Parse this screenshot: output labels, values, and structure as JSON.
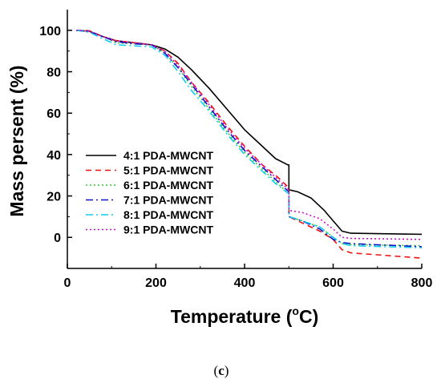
{
  "chart_data": {
    "type": "line",
    "xlabel_main": "Temperature (",
    "xlabel_sup": "o",
    "xlabel_end": "C)",
    "ylabel": "Mass persent (%)",
    "caption_open": "(",
    "caption_letter": "c",
    "caption_close": ")",
    "xlim": [
      0,
      800
    ],
    "ylim": [
      -15,
      110
    ],
    "xticks": [
      0,
      200,
      400,
      600,
      800
    ],
    "yticks": [
      0,
      20,
      40,
      60,
      80,
      100
    ],
    "legend_position": "lower-left",
    "grid": false,
    "series": [
      {
        "name": "4:1 PDA-MWCNT",
        "color": "#000000",
        "dash": "solid",
        "points": [
          [
            20,
            100
          ],
          [
            50,
            99.5
          ],
          [
            80,
            97
          ],
          [
            110,
            95
          ],
          [
            150,
            94
          ],
          [
            190,
            93
          ],
          [
            220,
            91
          ],
          [
            250,
            87
          ],
          [
            280,
            81
          ],
          [
            320,
            72
          ],
          [
            360,
            62
          ],
          [
            400,
            52
          ],
          [
            440,
            44
          ],
          [
            470,
            38
          ],
          [
            498,
            35
          ],
          [
            500,
            35
          ],
          [
            500,
            23
          ],
          [
            520,
            22
          ],
          [
            550,
            19
          ],
          [
            580,
            13
          ],
          [
            600,
            8
          ],
          [
            620,
            3
          ],
          [
            640,
            2
          ],
          [
            800,
            1.5
          ]
        ]
      },
      {
        "name": "5:1 PDA-MWCNT",
        "color": "#ee1111",
        "dash": "7,5",
        "points": [
          [
            20,
            100
          ],
          [
            50,
            99.8
          ],
          [
            80,
            97
          ],
          [
            110,
            95
          ],
          [
            150,
            94
          ],
          [
            190,
            93
          ],
          [
            220,
            90
          ],
          [
            250,
            84
          ],
          [
            280,
            75
          ],
          [
            320,
            65
          ],
          [
            360,
            54
          ],
          [
            400,
            44
          ],
          [
            440,
            35
          ],
          [
            470,
            30
          ],
          [
            500,
            24
          ],
          [
            500,
            10
          ],
          [
            530,
            7
          ],
          [
            570,
            3
          ],
          [
            600,
            -1
          ],
          [
            620,
            -6
          ],
          [
            640,
            -7.5
          ],
          [
            800,
            -10
          ]
        ]
      },
      {
        "name": "6:1 PDA-MWCNT",
        "color": "#33cc33",
        "dash": "2,3",
        "points": [
          [
            20,
            100
          ],
          [
            50,
            99.5
          ],
          [
            80,
            97
          ],
          [
            110,
            94
          ],
          [
            150,
            93.5
          ],
          [
            190,
            93
          ],
          [
            220,
            89
          ],
          [
            250,
            82
          ],
          [
            280,
            73
          ],
          [
            320,
            62
          ],
          [
            360,
            51
          ],
          [
            400,
            41
          ],
          [
            440,
            33
          ],
          [
            470,
            27
          ],
          [
            500,
            21
          ],
          [
            500,
            10
          ],
          [
            530,
            8
          ],
          [
            570,
            5
          ],
          [
            600,
            0
          ],
          [
            620,
            -3
          ],
          [
            640,
            -3.5
          ],
          [
            800,
            -4
          ]
        ]
      },
      {
        "name": "7:1 PDA-MWCNT",
        "color": "#1111cc",
        "dash": "9,4,2,4",
        "points": [
          [
            20,
            100
          ],
          [
            50,
            99.5
          ],
          [
            80,
            97
          ],
          [
            110,
            94.5
          ],
          [
            150,
            93.5
          ],
          [
            190,
            93
          ],
          [
            220,
            89
          ],
          [
            250,
            82
          ],
          [
            280,
            74
          ],
          [
            320,
            63
          ],
          [
            360,
            52
          ],
          [
            400,
            42
          ],
          [
            440,
            34
          ],
          [
            470,
            28
          ],
          [
            500,
            22
          ],
          [
            500,
            10
          ],
          [
            530,
            8
          ],
          [
            570,
            4
          ],
          [
            600,
            -1
          ],
          [
            620,
            -2.5
          ],
          [
            640,
            -3
          ],
          [
            800,
            -4.5
          ]
        ]
      },
      {
        "name": "8:1 PDA-MWCNT",
        "color": "#11ccee",
        "dash": "9,4,2,4",
        "points": [
          [
            20,
            100
          ],
          [
            50,
            99
          ],
          [
            80,
            96
          ],
          [
            110,
            93
          ],
          [
            150,
            92.5
          ],
          [
            190,
            92
          ],
          [
            220,
            88
          ],
          [
            250,
            80
          ],
          [
            280,
            71
          ],
          [
            320,
            61
          ],
          [
            360,
            50
          ],
          [
            400,
            40
          ],
          [
            440,
            32
          ],
          [
            470,
            26
          ],
          [
            500,
            21
          ],
          [
            500,
            10
          ],
          [
            530,
            8
          ],
          [
            570,
            5
          ],
          [
            600,
            0
          ],
          [
            620,
            -3
          ],
          [
            640,
            -4
          ],
          [
            800,
            -5
          ]
        ]
      },
      {
        "name": "9:1 PDA-MWCNT",
        "color": "#cc11cc",
        "dash": "2,3",
        "points": [
          [
            20,
            100
          ],
          [
            50,
            99.5
          ],
          [
            80,
            97
          ],
          [
            110,
            95
          ],
          [
            150,
            94
          ],
          [
            190,
            93
          ],
          [
            220,
            90
          ],
          [
            250,
            83
          ],
          [
            280,
            75
          ],
          [
            320,
            64
          ],
          [
            360,
            53
          ],
          [
            400,
            43
          ],
          [
            440,
            35
          ],
          [
            470,
            29
          ],
          [
            500,
            23
          ],
          [
            500,
            13
          ],
          [
            530,
            12
          ],
          [
            570,
            9
          ],
          [
            600,
            4
          ],
          [
            620,
            0
          ],
          [
            640,
            -0.5
          ],
          [
            800,
            -1
          ]
        ]
      }
    ]
  }
}
